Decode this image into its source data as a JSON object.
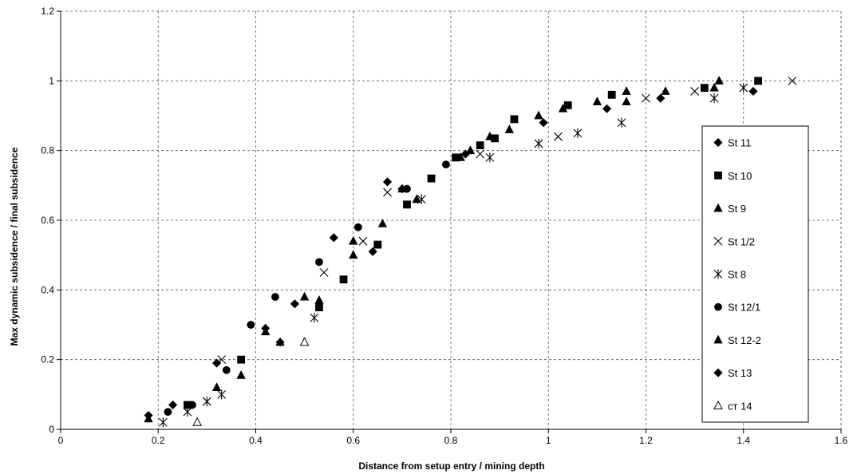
{
  "chart_data": {
    "type": "scatter",
    "title": "",
    "xlabel": "Distance from setup entry / mining depth",
    "ylabel": "Max dynamic subsidence  / final subsidence",
    "xlim": [
      0,
      1.6
    ],
    "ylim": [
      0,
      1.2
    ],
    "x_ticks": [
      0,
      0.2,
      0.4,
      0.6,
      0.8,
      1,
      1.2,
      1.4,
      1.6
    ],
    "y_ticks": [
      0,
      0.2,
      0.4,
      0.6,
      0.8,
      1,
      1.2
    ],
    "x_tick_labels": [
      "0",
      "0.2",
      "0.4",
      "0.6",
      "0.8",
      "1",
      "1.2",
      "1.4",
      "1.6"
    ],
    "y_tick_labels": [
      "0",
      "0.2",
      "0.4",
      "0.6",
      "0.8",
      "1",
      "1.2"
    ],
    "grid": true,
    "grid_style": "dashed",
    "legend_position": "right",
    "series": [
      {
        "name": "St 11",
        "marker": "diamond",
        "fill": "#000000",
        "points": [
          [
            0.18,
            0.04
          ],
          [
            0.23,
            0.07
          ],
          [
            0.32,
            0.19
          ],
          [
            0.42,
            0.29
          ],
          [
            0.48,
            0.36
          ],
          [
            0.56,
            0.55
          ],
          [
            0.64,
            0.51
          ],
          [
            0.67,
            0.71
          ],
          [
            0.83,
            0.79
          ],
          [
            0.99,
            0.88
          ],
          [
            1.12,
            0.92
          ],
          [
            1.23,
            0.95
          ],
          [
            1.42,
            0.97
          ]
        ]
      },
      {
        "name": "St 10",
        "marker": "square",
        "fill": "#000000",
        "points": [
          [
            0.26,
            0.07
          ],
          [
            0.37,
            0.2
          ],
          [
            0.53,
            0.35
          ],
          [
            0.58,
            0.43
          ],
          [
            0.65,
            0.53
          ],
          [
            0.71,
            0.645
          ],
          [
            0.76,
            0.72
          ],
          [
            0.81,
            0.78
          ],
          [
            0.86,
            0.815
          ],
          [
            0.89,
            0.835
          ],
          [
            0.93,
            0.89
          ],
          [
            1.04,
            0.93
          ],
          [
            1.13,
            0.96
          ],
          [
            1.32,
            0.98
          ],
          [
            1.43,
            1.0
          ]
        ]
      },
      {
        "name": "St 9",
        "marker": "triangle",
        "fill": "#000000",
        "points": [
          [
            0.32,
            0.12
          ],
          [
            0.37,
            0.155
          ],
          [
            0.45,
            0.25
          ],
          [
            0.53,
            0.37
          ],
          [
            0.6,
            0.54
          ],
          [
            0.66,
            0.59
          ],
          [
            0.73,
            0.66
          ],
          [
            0.84,
            0.8
          ],
          [
            0.88,
            0.84
          ],
          [
            0.92,
            0.86
          ],
          [
            0.98,
            0.9
          ],
          [
            1.03,
            0.92
          ],
          [
            1.1,
            0.94
          ],
          [
            1.16,
            0.97
          ],
          [
            1.24,
            0.97
          ],
          [
            1.34,
            0.98
          ],
          [
            1.35,
            1.0
          ]
        ]
      },
      {
        "name": "St 1/2",
        "marker": "x",
        "fill": "#000000",
        "points": [
          [
            0.33,
            0.2
          ],
          [
            0.54,
            0.45
          ],
          [
            0.62,
            0.54
          ],
          [
            0.67,
            0.68
          ],
          [
            0.86,
            0.79
          ],
          [
            1.02,
            0.84
          ],
          [
            1.2,
            0.95
          ],
          [
            1.3,
            0.97
          ],
          [
            1.5,
            1.0
          ]
        ]
      },
      {
        "name": "St 8",
        "marker": "asterisk",
        "fill": "#000000",
        "points": [
          [
            0.21,
            0.02
          ],
          [
            0.26,
            0.05
          ],
          [
            0.3,
            0.08
          ],
          [
            0.33,
            0.1
          ],
          [
            0.52,
            0.32
          ],
          [
            0.74,
            0.66
          ],
          [
            0.88,
            0.78
          ],
          [
            0.98,
            0.82
          ],
          [
            1.06,
            0.85
          ],
          [
            1.15,
            0.88
          ],
          [
            1.34,
            0.95
          ],
          [
            1.4,
            0.98
          ]
        ]
      },
      {
        "name": "St 12/1",
        "marker": "circle",
        "fill": "#000000",
        "points": [
          [
            0.22,
            0.05
          ],
          [
            0.27,
            0.07
          ],
          [
            0.34,
            0.17
          ],
          [
            0.39,
            0.3
          ],
          [
            0.44,
            0.38
          ],
          [
            0.53,
            0.48
          ],
          [
            0.61,
            0.58
          ],
          [
            0.71,
            0.69
          ],
          [
            0.79,
            0.76
          ]
        ]
      },
      {
        "name": "St 12-2",
        "marker": "triangle",
        "fill": "#000000",
        "points": [
          [
            0.18,
            0.03
          ],
          [
            0.42,
            0.28
          ],
          [
            0.5,
            0.38
          ],
          [
            0.6,
            0.5
          ],
          [
            0.7,
            0.69
          ],
          [
            0.82,
            0.78
          ],
          [
            1.16,
            0.94
          ]
        ]
      },
      {
        "name": "St 13",
        "marker": "diamond",
        "fill": "#000000",
        "points": [
          [
            0.45,
            0.25
          ],
          [
            0.7,
            0.69
          ]
        ]
      },
      {
        "name": "ст 14",
        "marker": "triangle-open",
        "fill": "#ffffff",
        "points": [
          [
            0.28,
            0.02
          ],
          [
            0.5,
            0.25
          ]
        ]
      }
    ]
  }
}
